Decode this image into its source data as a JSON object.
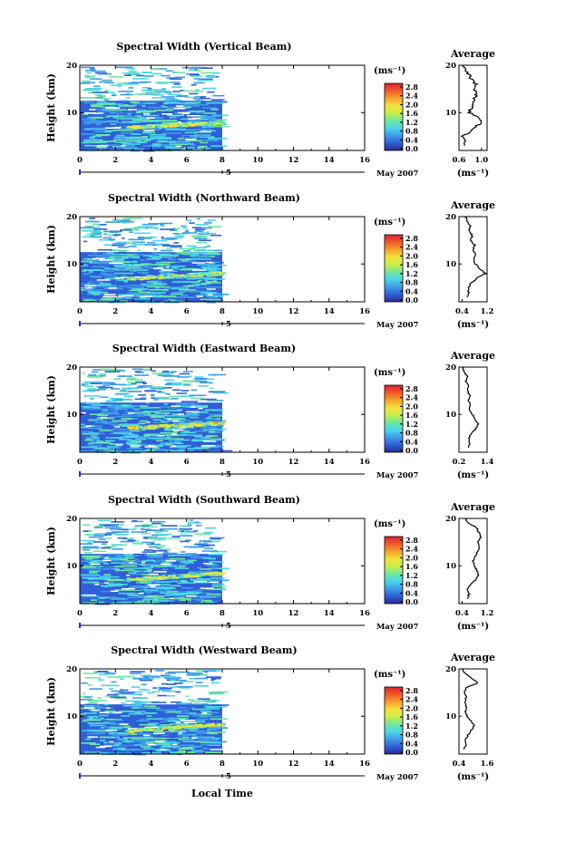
{
  "colors": {
    "colorbar_stops": [
      "#2b2b8c",
      "#2f5fd8",
      "#3f9ce8",
      "#49d7e8",
      "#6fe6a0",
      "#c9ee4a",
      "#f2e23a",
      "#f7a12e",
      "#ef5a26",
      "#e0203a"
    ],
    "field_base": "#2f5fd8",
    "axis": "#000000",
    "date_marker": "#2a2ad0"
  },
  "x_axis_label": "Local Time",
  "date_label": "May 2007",
  "date_day": "5",
  "colorbar_unit": "(ms⁻¹)",
  "avg_unit": "(ms⁻¹)",
  "avg_title": "Average",
  "ylabel": "Height (km)",
  "chart_data": [
    {
      "type": "heatmap",
      "title": "Spectral Width (Vertical Beam)",
      "xlabel": "Local Time",
      "ylabel": "Height (km)",
      "x_ticks": [
        "0",
        "2",
        "4",
        "6",
        "8",
        "10",
        "12",
        "14",
        "16"
      ],
      "y_ticks": [
        "10",
        "20"
      ],
      "xlim": [
        0,
        16
      ],
      "ylim": [
        2,
        20
      ],
      "data_end_hour": 8,
      "colorbar_ticks": [
        "2.8",
        "2.4",
        "2.0",
        "1.6",
        "1.2",
        "0.8",
        "0.4",
        "0.0"
      ],
      "peak_layer": {
        "start_height": 7.0,
        "end_height": 8.0,
        "value": 1.8
      },
      "avg_profile": {
        "xlim": [
          0.6,
          1.1
        ],
        "xtick_labels": [
          "0.6",
          "1.0"
        ],
        "xtick_values": [
          0.6,
          1.0
        ],
        "heights": [
          3,
          4,
          5,
          6,
          7,
          8,
          9,
          10,
          11,
          12,
          13,
          14,
          15,
          16,
          17,
          18,
          19,
          20
        ],
        "values": [
          0.68,
          0.72,
          0.66,
          0.8,
          0.9,
          1.0,
          0.95,
          0.78,
          0.82,
          0.84,
          0.88,
          0.92,
          0.86,
          0.9,
          0.82,
          0.78,
          0.72,
          0.68
        ]
      }
    },
    {
      "type": "heatmap",
      "title": "Spectral Width (Northward Beam)",
      "xlabel": "Local Time",
      "ylabel": "Height (km)",
      "x_ticks": [
        "0",
        "2",
        "4",
        "6",
        "8",
        "10",
        "12",
        "14",
        "16"
      ],
      "y_ticks": [
        "10",
        "20"
      ],
      "xlim": [
        0,
        16
      ],
      "ylim": [
        2,
        20
      ],
      "data_end_hour": 8,
      "colorbar_ticks": [
        "2.8",
        "2.4",
        "2.0",
        "1.6",
        "1.2",
        "0.8",
        "0.4",
        "0.0"
      ],
      "peak_layer": {
        "start_height": 7.0,
        "end_height": 8.2,
        "value": 1.7
      },
      "avg_profile": {
        "xlim": [
          0.3,
          1.2
        ],
        "xtick_labels": [
          "0.4",
          "1.2"
        ],
        "xtick_values": [
          0.4,
          1.2
        ],
        "heights": [
          3,
          4,
          5,
          6,
          7,
          8,
          9,
          10,
          11,
          12,
          13,
          14,
          15,
          16,
          17,
          18,
          19,
          20
        ],
        "values": [
          0.55,
          0.62,
          0.58,
          0.7,
          0.86,
          1.15,
          0.98,
          0.82,
          0.78,
          0.86,
          0.74,
          0.8,
          0.68,
          0.72,
          0.62,
          0.66,
          0.56,
          0.5
        ]
      }
    },
    {
      "type": "heatmap",
      "title": "Spectral Width (Eastward Beam)",
      "xlabel": "Local Time",
      "ylabel": "Height (km)",
      "x_ticks": [
        "0",
        "2",
        "4",
        "6",
        "8",
        "10",
        "12",
        "14",
        "16"
      ],
      "y_ticks": [
        "10",
        "20"
      ],
      "xlim": [
        0,
        16
      ],
      "ylim": [
        2,
        20
      ],
      "data_end_hour": 8,
      "colorbar_ticks": [
        "2.8",
        "2.4",
        "2.0",
        "1.6",
        "1.2",
        "0.8",
        "0.4",
        "0.0"
      ],
      "peak_layer": {
        "start_height": 7.3,
        "end_height": 8.3,
        "value": 1.9
      },
      "avg_profile": {
        "xlim": [
          0.2,
          1.4
        ],
        "xtick_labels": [
          "0.2",
          "1.4"
        ],
        "xtick_values": [
          0.2,
          1.4
        ],
        "heights": [
          3,
          4,
          5,
          6,
          7,
          8,
          9,
          10,
          11,
          12,
          13,
          14,
          15,
          16,
          17,
          18,
          19,
          20
        ],
        "values": [
          0.58,
          0.66,
          0.62,
          0.74,
          0.92,
          1.02,
          0.9,
          0.76,
          0.64,
          0.7,
          0.6,
          0.66,
          0.56,
          0.62,
          0.48,
          0.56,
          0.4,
          0.36
        ]
      }
    },
    {
      "type": "heatmap",
      "title": "Spectral Width (Southward Beam)",
      "xlabel": "Local Time",
      "ylabel": "Height (km)",
      "x_ticks": [
        "0",
        "2",
        "4",
        "6",
        "8",
        "10",
        "12",
        "14",
        "16"
      ],
      "y_ticks": [
        "10",
        "20"
      ],
      "xlim": [
        0,
        16
      ],
      "ylim": [
        2,
        20
      ],
      "data_end_hour": 8,
      "colorbar_ticks": [
        "2.8",
        "2.4",
        "2.0",
        "1.6",
        "1.2",
        "0.8",
        "0.4",
        "0.0"
      ],
      "peak_layer": {
        "start_height": 7.2,
        "end_height": 8.6,
        "value": 1.8
      },
      "avg_profile": {
        "xlim": [
          0.3,
          1.2
        ],
        "xtick_labels": [
          "0.4",
          "1.2"
        ],
        "xtick_values": [
          0.4,
          1.2
        ],
        "heights": [
          3,
          4,
          5,
          6,
          7,
          8,
          9,
          10,
          11,
          12,
          13,
          14,
          15,
          16,
          17,
          18,
          19,
          20
        ],
        "values": [
          0.56,
          0.62,
          0.58,
          0.68,
          0.82,
          0.92,
          0.88,
          0.8,
          0.76,
          0.84,
          0.88,
          0.96,
          0.9,
          1.02,
          0.94,
          0.86,
          0.62,
          0.5
        ]
      }
    },
    {
      "type": "heatmap",
      "title": "Spectral Width (Westward Beam)",
      "xlabel": "Local Time",
      "ylabel": "Height (km)",
      "x_ticks": [
        "0",
        "2",
        "4",
        "6",
        "8",
        "10",
        "12",
        "14",
        "16"
      ],
      "y_ticks": [
        "10",
        "20"
      ],
      "xlim": [
        0,
        16
      ],
      "ylim": [
        2,
        20
      ],
      "data_end_hour": 8,
      "colorbar_ticks": [
        "2.8",
        "2.4",
        "2.0",
        "1.6",
        "1.2",
        "0.8",
        "0.4",
        "0.0"
      ],
      "peak_layer": {
        "start_height": 7.0,
        "end_height": 8.5,
        "value": 1.9
      },
      "avg_profile": {
        "xlim": [
          0.4,
          1.6
        ],
        "xtick_labels": [
          "0.4",
          "1.6"
        ],
        "xtick_values": [
          0.4,
          1.6
        ],
        "heights": [
          3,
          4,
          5,
          6,
          7,
          8,
          9,
          10,
          11,
          12,
          13,
          14,
          15,
          16,
          17,
          18,
          19,
          20
        ],
        "values": [
          0.62,
          0.7,
          0.66,
          0.78,
          0.92,
          1.06,
          0.9,
          0.74,
          0.68,
          0.72,
          0.66,
          0.7,
          0.62,
          0.72,
          1.2,
          0.96,
          0.66,
          0.56
        ]
      }
    }
  ]
}
